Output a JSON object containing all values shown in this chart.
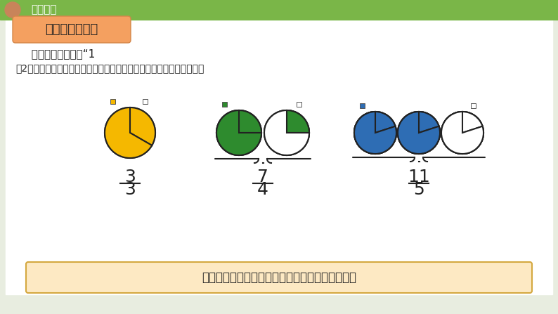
{
  "bg_color": "#f0f0f0",
  "header_color": "#7ab648",
  "header_text": "新知探究",
  "title_box_color": "#f4a060",
  "title_text": "真分数和假分数",
  "line1": "  把一个圆作为单位“1",
  "line2": "（2）分别涂色表示下面各分数，并比较每个分数中分子和分母的大小。",
  "fraction1_num": "3",
  "fraction1_den": "3",
  "fraction2_num": "7",
  "fraction2_den": "4",
  "fraction3_num": "11",
  "fraction3_den": "5",
  "bottom_text": "这些分数的分子有的比分母大，有的和分母一样大",
  "bottom_box_color": "#fde9c3",
  "circle1_color": "#f5b800",
  "circle2a_color": "#2e8b2e",
  "circle2b_color": "#2e8b2e",
  "circle3a_color": "#2e6db4",
  "circle3b_color": "#2e6db4",
  "circle3c_color": "#2e6db4"
}
